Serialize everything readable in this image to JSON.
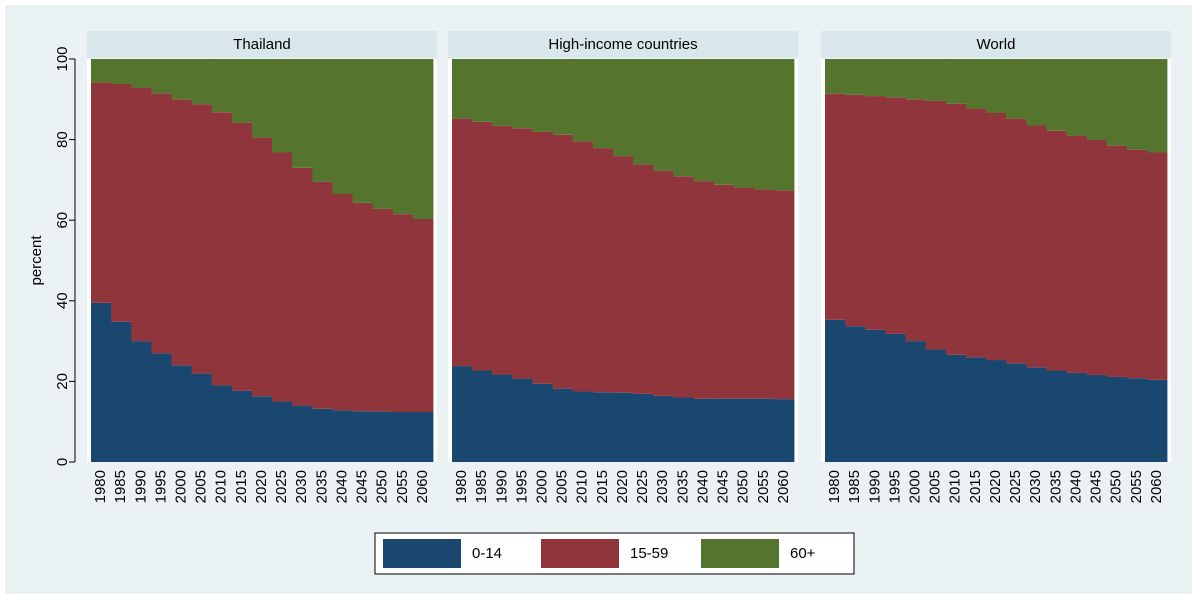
{
  "chart_data": {
    "type": "bar",
    "stacked": true,
    "ylabel": "percent",
    "ylim": [
      0,
      100
    ],
    "yticks": [
      0,
      20,
      40,
      60,
      80,
      100
    ],
    "categories": [
      "1980",
      "1985",
      "1990",
      "1995",
      "2000",
      "2005",
      "2010",
      "2015",
      "2020",
      "2025",
      "2030",
      "2035",
      "2040",
      "2045",
      "2050",
      "2055",
      "2060"
    ],
    "series": [
      {
        "name": "0-14",
        "color": "#1a476f"
      },
      {
        "name": "15-59",
        "color": "#90353b"
      },
      {
        "name": "60+",
        "color": "#55752f"
      }
    ],
    "panels": [
      {
        "title": "Thailand",
        "values": [
          [
            39.5,
            34.8,
            30.0,
            27.0,
            24.0,
            22.0,
            19.0,
            17.7,
            16.3,
            15.0,
            14.0,
            13.2,
            12.8,
            12.6,
            12.5,
            12.4,
            12.4
          ],
          [
            54.7,
            59.0,
            62.8,
            64.5,
            66.0,
            66.8,
            67.8,
            66.5,
            64.2,
            61.8,
            59.0,
            56.3,
            53.7,
            51.7,
            50.3,
            49.1,
            47.9
          ],
          [
            5.8,
            6.2,
            7.2,
            8.5,
            10.0,
            11.2,
            13.2,
            15.8,
            19.5,
            23.2,
            27.0,
            30.5,
            33.5,
            35.7,
            37.2,
            38.5,
            39.7
          ]
        ]
      },
      {
        "title": "High-income countries",
        "values": [
          [
            23.8,
            22.7,
            21.7,
            20.7,
            19.4,
            18.2,
            17.5,
            17.3,
            17.2,
            16.9,
            16.4,
            16.0,
            15.7,
            15.7,
            15.7,
            15.7,
            15.6
          ],
          [
            61.4,
            61.7,
            61.7,
            62.1,
            62.5,
            63.0,
            62.1,
            60.5,
            58.7,
            56.9,
            55.9,
            54.9,
            54.0,
            53.1,
            52.4,
            51.9,
            51.8
          ],
          [
            14.8,
            15.6,
            16.6,
            17.2,
            18.1,
            18.8,
            20.4,
            22.2,
            24.1,
            26.2,
            27.7,
            29.1,
            30.3,
            31.2,
            31.9,
            32.4,
            32.6
          ]
        ]
      },
      {
        "title": "World",
        "values": [
          [
            35.3,
            33.7,
            32.8,
            31.8,
            30.0,
            27.9,
            26.6,
            26.0,
            25.3,
            24.5,
            23.5,
            22.7,
            22.1,
            21.6,
            21.1,
            20.8,
            20.4
          ],
          [
            56.1,
            57.4,
            58.0,
            58.7,
            60.0,
            61.7,
            62.3,
            61.7,
            61.3,
            60.7,
            60.0,
            59.5,
            58.9,
            58.3,
            57.4,
            56.7,
            56.4
          ],
          [
            8.6,
            8.9,
            9.2,
            9.5,
            10.0,
            10.4,
            11.1,
            12.3,
            13.4,
            14.8,
            16.5,
            17.8,
            19.0,
            20.1,
            21.5,
            22.5,
            23.2
          ]
        ]
      }
    ]
  }
}
